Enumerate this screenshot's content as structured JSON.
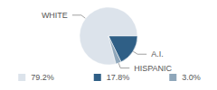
{
  "chart_data": {
    "type": "pie",
    "categories": [
      "WHITE",
      "A.I.",
      "HISPANIC"
    ],
    "values": [
      79.2,
      17.8,
      3.0
    ],
    "value_labels": [
      "79.2%",
      "17.8%",
      "3.0%"
    ],
    "colors": [
      "#dce3eb",
      "#2f5f86",
      "#8ea6ba"
    ],
    "legend": "bottom"
  }
}
